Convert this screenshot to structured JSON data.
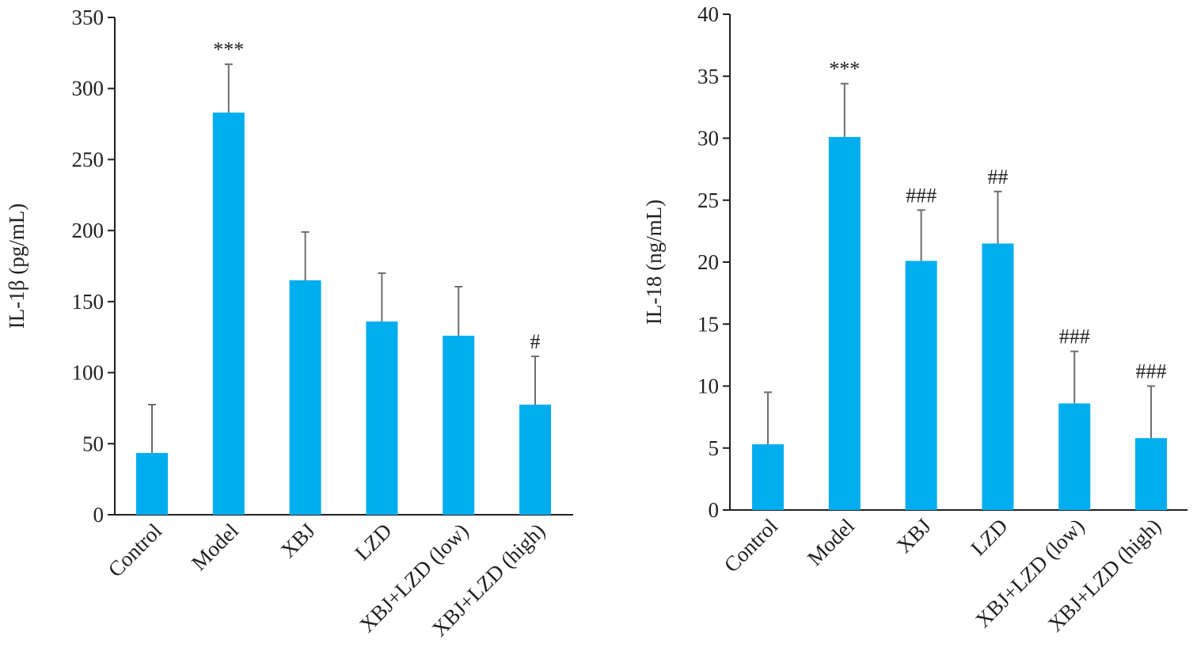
{
  "colors": {
    "bar": "#00aeef",
    "error": "#6d6e71",
    "axis": "#231f20"
  },
  "chart_data": [
    {
      "type": "bar",
      "title": "",
      "xlabel": "",
      "ylabel": "IL-1β (pg/mL)",
      "ylim": [
        0,
        350
      ],
      "yticks": [
        0,
        50,
        100,
        150,
        200,
        250,
        300,
        350
      ],
      "categories": [
        "Control",
        "Model",
        "XBJ",
        "LZD",
        "XBJ+LZD (low)",
        "XBJ+LZD (high)"
      ],
      "values": [
        43.5,
        283,
        165,
        136,
        126,
        77.5
      ],
      "error_upper": [
        77.5,
        317,
        199,
        170,
        160.5,
        111.5
      ],
      "annotations": [
        "",
        "***",
        "",
        "",
        "",
        "#"
      ]
    },
    {
      "type": "bar",
      "title": "",
      "xlabel": "",
      "ylabel": "IL-18 (ng/mL)",
      "ylim": [
        0,
        40
      ],
      "yticks": [
        0,
        5,
        10,
        15,
        20,
        25,
        30,
        35,
        40
      ],
      "categories": [
        "Control",
        "Model",
        "XBJ",
        "LZD",
        "XBJ+LZD (low)",
        "XBJ+LZD (high)"
      ],
      "values": [
        5.3,
        30.1,
        20.1,
        21.5,
        8.6,
        5.8
      ],
      "error_upper": [
        9.5,
        34.4,
        24.2,
        25.7,
        12.8,
        10.0
      ],
      "annotations": [
        "",
        "***",
        "###",
        "##",
        "###",
        "###"
      ]
    }
  ]
}
